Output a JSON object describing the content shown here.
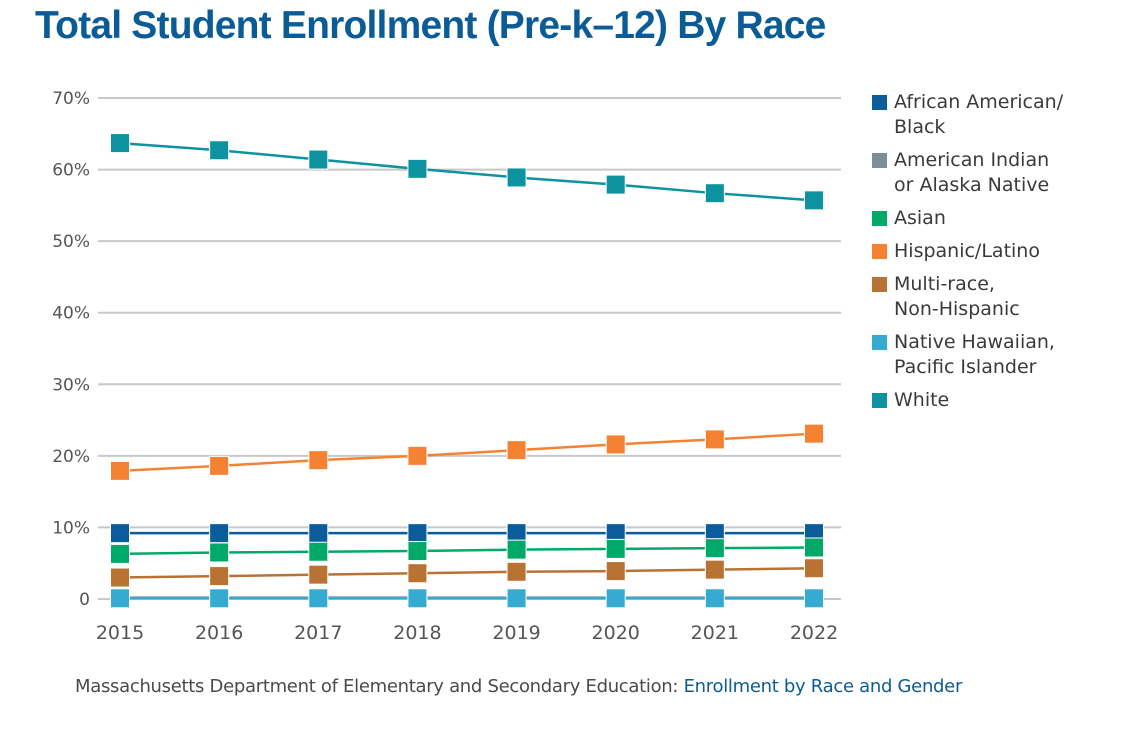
{
  "title": "Total Student Enrollment (Pre-k–12) By Race",
  "source": {
    "text": "Massachusetts Department of Elementary and Secondary Education: ",
    "link_label": "Enrollment by Race and Gender"
  },
  "chart_data": {
    "type": "line",
    "title": "Total Student Enrollment (Pre-k–12) By Race",
    "xlabel": "",
    "ylabel": "",
    "x": [
      "2015",
      "2016",
      "2017",
      "2018",
      "2019",
      "2020",
      "2021",
      "2022"
    ],
    "ylim": [
      0,
      70
    ],
    "yticks": [
      0,
      10,
      20,
      30,
      40,
      50,
      60,
      70
    ],
    "ytick_labels": [
      "0",
      "10%",
      "20%",
      "30%",
      "40%",
      "50%",
      "60%",
      "70%"
    ],
    "grid": true,
    "legend_position": "right",
    "marker": "square",
    "series": [
      {
        "name": "African American/\nBlack",
        "color": "#0b5c9b",
        "values": [
          9.2,
          9.2,
          9.2,
          9.2,
          9.2,
          9.2,
          9.2,
          9.2
        ]
      },
      {
        "name": "American Indian\nor Alaska Native",
        "color": "#7a8f99",
        "values": [
          0.2,
          0.2,
          0.2,
          0.2,
          0.2,
          0.2,
          0.2,
          0.2
        ]
      },
      {
        "name": "Asian",
        "color": "#00a968",
        "values": [
          6.3,
          6.5,
          6.6,
          6.7,
          6.9,
          7.0,
          7.1,
          7.2
        ]
      },
      {
        "name": "Hispanic/Latino",
        "color": "#f58232",
        "values": [
          17.9,
          18.6,
          19.4,
          20.0,
          20.8,
          21.6,
          22.3,
          23.1
        ]
      },
      {
        "name": "Multi-race,\nNon-Hispanic",
        "color": "#b87333",
        "values": [
          3.0,
          3.2,
          3.4,
          3.6,
          3.8,
          3.9,
          4.1,
          4.3
        ]
      },
      {
        "name": "Native Hawaiian,\nPacific Islander",
        "color": "#35abd1",
        "values": [
          0.1,
          0.1,
          0.1,
          0.1,
          0.1,
          0.1,
          0.1,
          0.1
        ]
      },
      {
        "name": "White",
        "color": "#0d93a0",
        "values": [
          63.7,
          62.7,
          61.4,
          60.1,
          58.9,
          57.9,
          56.7,
          55.7
        ]
      }
    ]
  }
}
